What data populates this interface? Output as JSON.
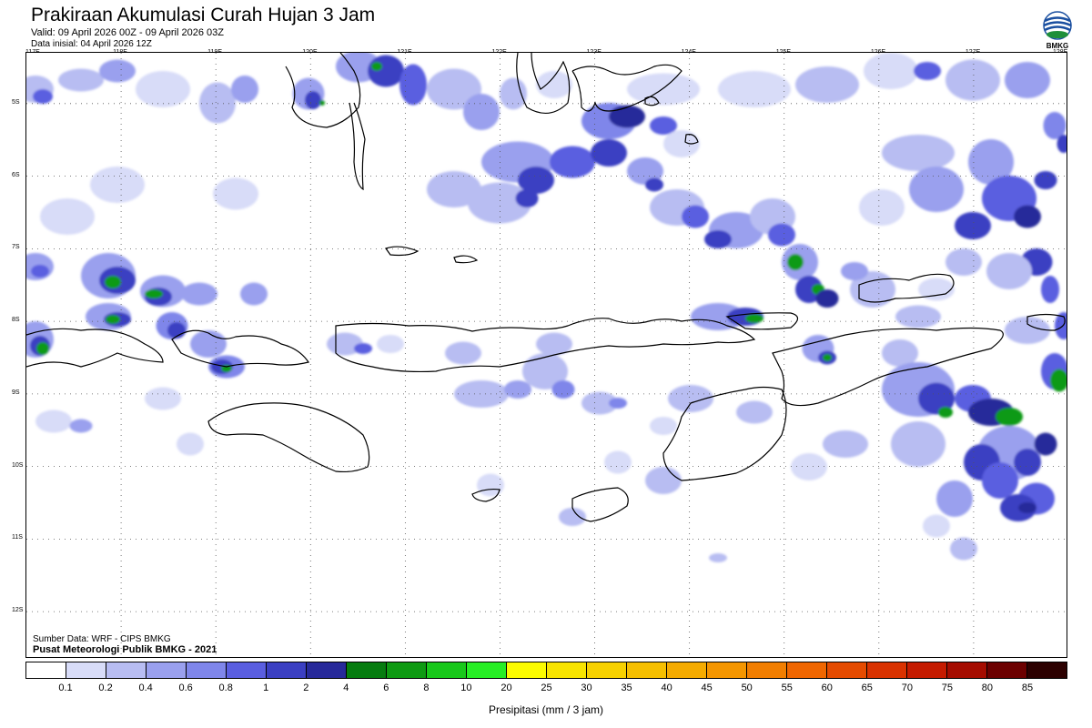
{
  "header": {
    "title": "Prakiraan Akumulasi Curah Hujan 3 Jam",
    "valid": "Valid: 09 April 2026 00Z - 09 April 2026 03Z",
    "init": "Data inisial: 04 April 2026 12Z"
  },
  "logo": {
    "text": "BMKG",
    "icon": "bmkg-logo-icon"
  },
  "map": {
    "lon_labels": [
      "117E",
      "118E",
      "119E",
      "120E",
      "121E",
      "122E",
      "123E",
      "124E",
      "125E",
      "126E",
      "127E",
      "128E"
    ],
    "lat_labels": [
      "5S",
      "6S",
      "7S",
      "8S",
      "9S",
      "10S",
      "11S",
      "12S"
    ],
    "grid": true,
    "ocean_color": "#ffffff",
    "coast_color": "#000000"
  },
  "footer": {
    "source": "Sumber Data: WRF - CIPS BMKG",
    "center": "Pusat Meteorologi Publik BMKG - 2021"
  },
  "legend": {
    "ticks": [
      "0.1",
      "0.2",
      "0.4",
      "0.6",
      "0.8",
      "1",
      "2",
      "4",
      "6",
      "8",
      "10",
      "20",
      "25",
      "30",
      "35",
      "40",
      "45",
      "50",
      "55",
      "60",
      "65",
      "70",
      "75",
      "80",
      "85"
    ],
    "colors": [
      "#ffffff",
      "#d8dcf8",
      "#b8bdf2",
      "#9aa0ee",
      "#7f86ea",
      "#5a5ee0",
      "#3b3fc2",
      "#27299a",
      "#067c0f",
      "#0e9a12",
      "#18c81a",
      "#27ee25",
      "#fbfb00",
      "#f8e400",
      "#f7d100",
      "#f6bf00",
      "#f5ab00",
      "#f59600",
      "#f27e00",
      "#f06600",
      "#e54b00",
      "#d93200",
      "#c51b00",
      "#a50c00",
      "#6c0000",
      "#2c0000"
    ],
    "unit_label": "Presipitasi (mm / 3 jam)"
  }
}
